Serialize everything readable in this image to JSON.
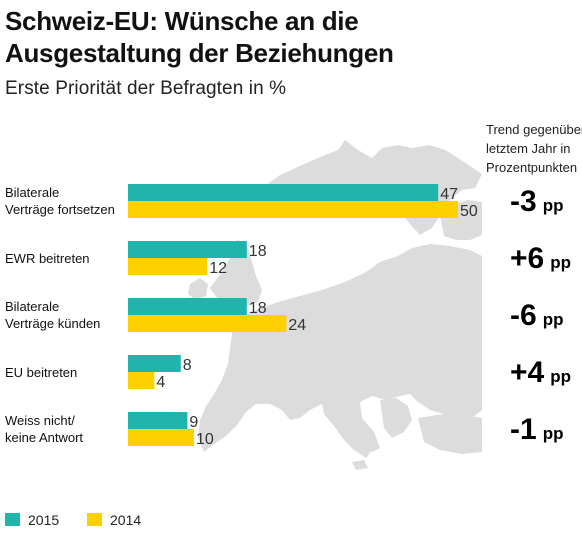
{
  "title": "Schweiz-EU: Wünsche an die\nAusgestaltung der Beziehungen",
  "subtitle": "Erste Priorität der Befragten in %",
  "trend_header": "Trend gegenüber\nletztem Jahr in\nProzentpunkten",
  "colors": {
    "series_2015": "#1fb5ad",
    "series_2014": "#ffd000",
    "map": "#dcdcdc"
  },
  "chart_data": {
    "type": "bar",
    "orientation": "horizontal",
    "title": "Schweiz-EU: Wünsche an die Ausgestaltung der Beziehungen",
    "subtitle": "Erste Priorität der Befragten in %",
    "categories": [
      "Bilaterale\nVerträge fortsetzen",
      "EWR beitreten",
      "Bilaterale\nVerträge künden",
      "EU beitreten",
      "Weiss nicht/\nkeine Antwort"
    ],
    "series": [
      {
        "name": "2015",
        "values": [
          47,
          18,
          18,
          8,
          9
        ]
      },
      {
        "name": "2014",
        "values": [
          50,
          12,
          24,
          4,
          10
        ]
      }
    ],
    "trend": [
      "-3 pp",
      "+6 pp",
      "-6 pp",
      "+4 pp",
      "-1 pp"
    ],
    "legend": [
      "2015",
      "2014"
    ],
    "legend_position": "bottom-left",
    "grid": false
  }
}
